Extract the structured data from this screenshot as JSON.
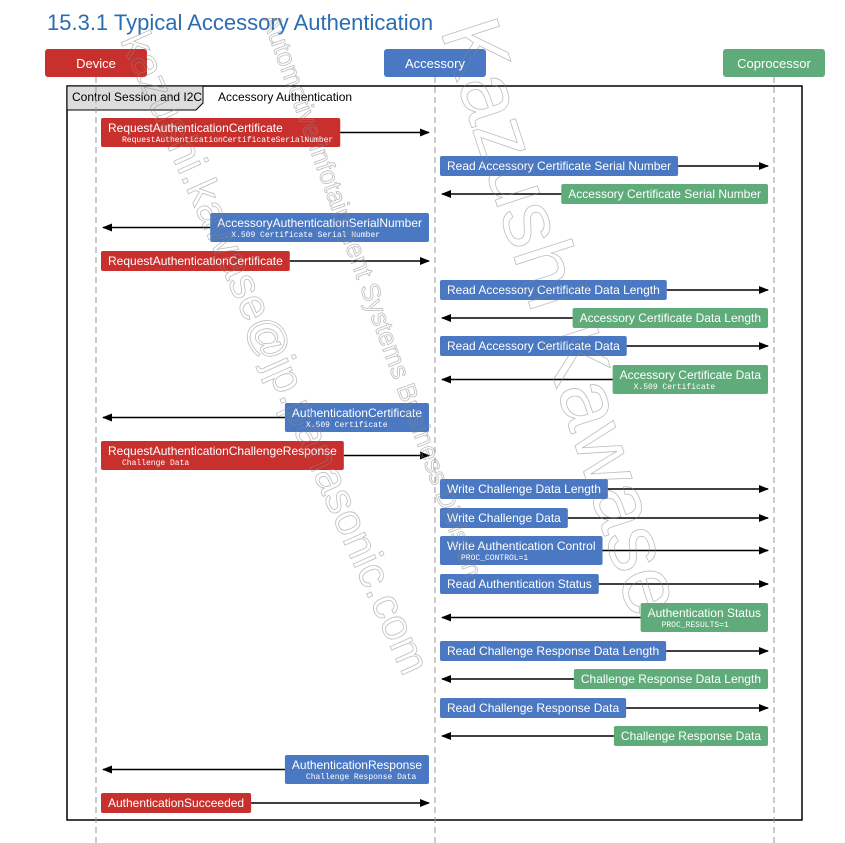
{
  "title": "15.3.1 Typical Accessory Authentication",
  "lifelines": [
    {
      "label": "Device",
      "color": "#c8302e"
    },
    {
      "label": "Accessory",
      "color": "#4a78c2"
    },
    {
      "label": "Coprocessor",
      "color": "#5fab7a"
    }
  ],
  "frame": {
    "tab": "Control Session and I2C",
    "label": "Accessory Authentication"
  },
  "messages": [
    {
      "from": 0,
      "to": 1,
      "label": "RequestAuthenticationCertificate",
      "sub": "RequestAuthenticationCertificateSerialNumber"
    },
    {
      "from": 1,
      "to": 2,
      "label": "Read Accessory Certificate Serial Number"
    },
    {
      "from": 2,
      "to": 1,
      "label": "Accessory Certificate Serial Number"
    },
    {
      "from": 1,
      "to": 0,
      "label": "AccessoryAuthenticationSerialNumber",
      "sub": "X.509 Certificate Serial Number"
    },
    {
      "from": 0,
      "to": 1,
      "label": "RequestAuthenticationCertificate"
    },
    {
      "from": 1,
      "to": 2,
      "label": "Read Accessory Certificate Data Length"
    },
    {
      "from": 2,
      "to": 1,
      "label": "Accessory Certificate Data Length"
    },
    {
      "from": 1,
      "to": 2,
      "label": "Read Accessory Certificate Data"
    },
    {
      "from": 2,
      "to": 1,
      "label": "Accessory Certificate Data",
      "sub": "X.509 Certificate"
    },
    {
      "from": 1,
      "to": 0,
      "label": "AuthenticationCertificate",
      "sub": "X.509 Certificate"
    },
    {
      "from": 0,
      "to": 1,
      "label": "RequestAuthenticationChallengeResponse",
      "sub": "Challenge Data"
    },
    {
      "from": 1,
      "to": 2,
      "label": "Write Challenge Data Length"
    },
    {
      "from": 1,
      "to": 2,
      "label": "Write Challenge Data"
    },
    {
      "from": 1,
      "to": 2,
      "label": "Write Authentication Control",
      "sub": "PROC_CONTROL=1"
    },
    {
      "from": 1,
      "to": 2,
      "label": "Read Authentication Status"
    },
    {
      "from": 2,
      "to": 1,
      "label": "Authentication Status",
      "sub": "PROC_RESULTS=1"
    },
    {
      "from": 1,
      "to": 2,
      "label": "Read Challenge Response Data Length"
    },
    {
      "from": 2,
      "to": 1,
      "label": "Challenge Response Data Length"
    },
    {
      "from": 1,
      "to": 2,
      "label": "Read Challenge Response Data"
    },
    {
      "from": 2,
      "to": 1,
      "label": "Challenge Response Data"
    },
    {
      "from": 1,
      "to": 0,
      "label": "AuthenticationResponse",
      "sub": "Challenge Response Data"
    },
    {
      "from": 0,
      "to": 1,
      "label": "AuthenticationSucceeded"
    }
  ],
  "watermarks": [
    "kazushi.kawase@jp.panasonic.com",
    "Automotive infotainment Systems Business Division",
    "Kazushi Kawase"
  ]
}
